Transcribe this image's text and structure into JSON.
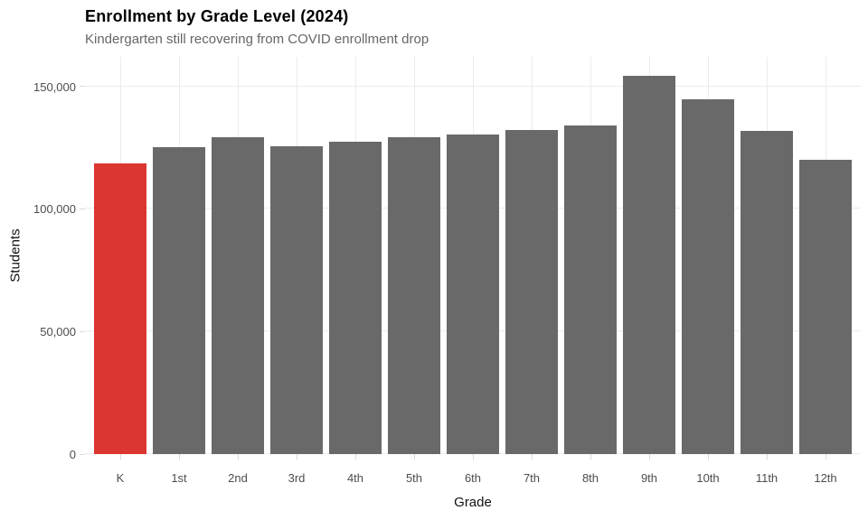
{
  "header": {
    "title": "Enrollment by Grade Level (2024)",
    "subtitle": "Kindergarten still recovering from COVID enrollment drop"
  },
  "chart_data": {
    "type": "bar",
    "title": "Enrollment by Grade Level (2024)",
    "subtitle": "Kindergarten still recovering from COVID enrollment drop",
    "xlabel": "Grade",
    "ylabel": "Students",
    "categories": [
      "K",
      "1st",
      "2nd",
      "3rd",
      "4th",
      "5th",
      "6th",
      "7th",
      "8th",
      "9th",
      "10th",
      "11th",
      "12th"
    ],
    "values": [
      118500,
      125200,
      129400,
      125700,
      127300,
      129100,
      130300,
      132100,
      133900,
      154300,
      144700,
      131800,
      120000
    ],
    "highlight_category": "K",
    "highlight_color": "#dc3632",
    "bar_color": "#696969",
    "grid": "on",
    "grid_color": "#ebebeb",
    "tick_color": "#d9d9d9",
    "tick_label_color": "#4d4d4d",
    "legend": "none",
    "ylim": [
      0,
      162000
    ],
    "yticks": [
      0,
      50000,
      100000,
      150000
    ],
    "ytick_labels": [
      "0",
      "50,000",
      "100,000",
      "150,000"
    ]
  }
}
